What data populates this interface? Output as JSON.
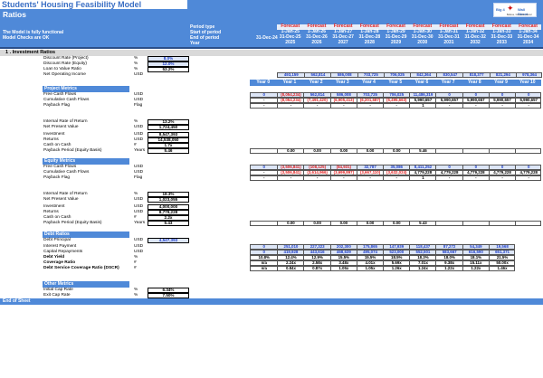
{
  "header": {
    "title": "Students' Housing Feasibility Model",
    "subtitle": "Ratios",
    "status_lines": [
      "The Model is fully functional",
      "Model Checks are OK"
    ],
    "row_labels": [
      "Period type",
      "Start of period",
      "End of period",
      "Year"
    ],
    "first_end": "31-Dec-24",
    "logo": {
      "left": "Big 4",
      "right": "Wall Street",
      "tagline": "Believe, Conceive, Excel"
    },
    "columns": [
      {
        "type": "Forecast",
        "start": "1-Jan-25",
        "end": "31-Dec-25",
        "year": "2025"
      },
      {
        "type": "Forecast",
        "start": "1-Jan-26",
        "end": "31-Dec-26",
        "year": "2026"
      },
      {
        "type": "Forecast",
        "start": "1-Jan-27",
        "end": "31-Dec-27",
        "year": "2027"
      },
      {
        "type": "Forecast",
        "start": "1-Jan-28",
        "end": "31-Dec-28",
        "year": "2028"
      },
      {
        "type": "Forecast",
        "start": "1-Jan-29",
        "end": "31-Dec-29",
        "year": "2029"
      },
      {
        "type": "Forecast",
        "start": "1-Jan-30",
        "end": "31-Dec-30",
        "year": "2030"
      },
      {
        "type": "Forecast",
        "start": "1-Jan-31",
        "end": "31-Dec-31",
        "year": "2031"
      },
      {
        "type": "Forecast",
        "start": "1-Jan-32",
        "end": "31-Dec-32",
        "year": "2032"
      },
      {
        "type": "Forecast",
        "start": "1-Jan-33",
        "end": "31-Dec-33",
        "year": "2033"
      },
      {
        "type": "Forecast",
        "start": "1-Jan-34",
        "end": "31-Dec-34",
        "year": "2034"
      }
    ]
  },
  "section1": {
    "title": "1 . Investment Ratios",
    "inputs": [
      {
        "label": "Discount Rate (Project)",
        "unit": "%",
        "value": "8.0%"
      },
      {
        "label": "Discount Rate (Equity)",
        "unit": "%",
        "value": "12.0%"
      },
      {
        "label": "Loan to Value Ratio",
        "unit": "%",
        "value": "53.2%"
      }
    ],
    "noi": {
      "label": "Net Operating Income",
      "unit": "USD",
      "values": [
        "493,159",
        "562,814",
        "586,008",
        "703,725",
        "706,025",
        "842,364",
        "830,547",
        "818,377",
        "821,294",
        "978,364"
      ]
    },
    "years": [
      "Year 0",
      "Year 1",
      "Year 2",
      "Year 3",
      "Year 4",
      "Year 5",
      "Year 6",
      "Year 7",
      "Year 8",
      "Year 9",
      "Year 10"
    ]
  },
  "project": {
    "title": "Project Metrics",
    "rows": [
      {
        "label": "Free Cash Flows",
        "unit": "USD",
        "values": [
          "0",
          "(8,054,234)",
          "562,814",
          "586,008",
          "703,725",
          "706,025",
          "11,486,319",
          "0",
          "0",
          "0",
          "0"
        ]
      },
      {
        "label": "Cumulative Cash Flows",
        "unit": "USD",
        "values": [
          "-",
          "(8,054,234)",
          "(7,491,420)",
          "(6,905,413)",
          "(6,201,687)",
          "(5,495,663)",
          "5,990,657",
          "5,990,657",
          "5,990,657",
          "5,990,657",
          "5,990,657"
        ]
      },
      {
        "label": "Payback Flag",
        "unit": "Flag",
        "values": [
          "-",
          "-",
          "-",
          "-",
          "-",
          "-",
          "1",
          "-",
          "-",
          "-",
          "-"
        ]
      }
    ],
    "irr": {
      "label": "Internal Rate of Return",
      "unit": "%",
      "value": "13.2%"
    },
    "npv": {
      "label": "Net Present Value",
      "unit": "USD",
      "value": "1,724,450"
    },
    "investment": {
      "label": "Investment",
      "unit": "USD",
      "value": "8,547,393"
    },
    "returns": {
      "label": "Returns",
      "unit": "USD",
      "value": "14,538,050"
    },
    "coc": {
      "label": "Cash on Cash",
      "unit": "#",
      "value": "1.7x"
    },
    "payback": {
      "label": "Payback Period (Equity Basis)",
      "unit": "Years",
      "value": "5.46",
      "values": [
        "",
        "0.00",
        "0.00",
        "0.00",
        "0.00",
        "0.00",
        "5.46",
        "",
        "",
        "",
        ""
      ]
    }
  },
  "equity": {
    "title": "Equity Metrics",
    "rows": [
      {
        "label": "Free Cash Flows",
        "unit": "USD",
        "values": [
          "0",
          "(3,506,841)",
          "(108,125)",
          "(84,931)",
          "32,787",
          "35,086",
          "8,411,252",
          "0",
          "0",
          "0",
          "0"
        ]
      },
      {
        "label": "Cumulative Cash Flows",
        "unit": "USD",
        "values": [
          "-",
          "(3,506,841)",
          "(3,614,966)",
          "(3,699,897)",
          "(3,667,110)",
          "(3,632,024)",
          "4,779,228",
          "4,779,228",
          "4,779,228",
          "4,779,228",
          "4,779,228"
        ]
      },
      {
        "label": "Payback Flag",
        "unit": "Flag",
        "values": [
          "-",
          "-",
          "-",
          "-",
          "-",
          "-",
          "1",
          "-",
          "-",
          "-",
          "-"
        ]
      }
    ],
    "irr": {
      "label": "Internal Rate of Return",
      "unit": "%",
      "value": "18.3%"
    },
    "npv": {
      "label": "Net Present Value",
      "unit": "USD",
      "value": "1,023,055"
    },
    "investment": {
      "label": "Investment",
      "unit": "USD",
      "value": "4,000,000"
    },
    "returns": {
      "label": "Returns",
      "unit": "USD",
      "value": "8,779,228"
    },
    "coc": {
      "label": "Cash on Cash",
      "unit": "#",
      "value": "2.2x"
    },
    "payback": {
      "label": "Payback Period (Equity Basis)",
      "unit": "Years",
      "value": "5.43",
      "values": [
        "",
        "0.00",
        "0.00",
        "0.00",
        "0.00",
        "0.00",
        "5.43",
        "",
        "",
        "",
        ""
      ]
    }
  },
  "debt": {
    "title": "Debt Ratios",
    "principal": {
      "label": "Debt Principal",
      "unit": "USD",
      "value": "4,547,393"
    },
    "rows": [
      {
        "label": "Interest Payment",
        "unit": "USD",
        "values": [
          "0",
          "251,010",
          "227,323",
          "202,300",
          "175,865",
          "147,939",
          "118,437",
          "87,272",
          "54,349",
          "19,568"
        ]
      },
      {
        "label": "Capital Repayments",
        "unit": "USD",
        "values": [
          "0",
          "419,928",
          "443,616",
          "468,639",
          "495,074",
          "523,000",
          "552,501",
          "583,667",
          "616,590",
          "651,371"
        ]
      },
      {
        "label": "Debt Yield",
        "unit": "%",
        "values": [
          "10.8%",
          "12.4%",
          "12.9%",
          "15.5%",
          "15.5%",
          "18.5%",
          "18.3%",
          "18.0%",
          "18.1%",
          "21.5%"
        ]
      },
      {
        "label": "Coverage Ratio",
        "unit": "#",
        "values": [
          "n/a",
          "2.24x",
          "2.58x",
          "3.48x",
          "4.01x",
          "5.69x",
          "7.01x",
          "9.38x",
          "15.11x",
          "50.00x"
        ]
      },
      {
        "label": "Debt Service Coverage Ratio (DSCR)",
        "unit": "#",
        "values": [
          "n/a",
          "0.84x",
          "0.87x",
          "1.05x",
          "1.05x",
          "1.26x",
          "1.24x",
          "1.22x",
          "1.22x",
          "1.46x"
        ]
      }
    ]
  },
  "other": {
    "title": "Other Metrics",
    "rows": [
      {
        "label": "Initial Cap Rate",
        "unit": "%",
        "value": "6.34%"
      },
      {
        "label": "Exit Cap Rate",
        "unit": "%",
        "value": "7.50%"
      }
    ]
  },
  "footer": {
    "label": "End of Sheet"
  }
}
